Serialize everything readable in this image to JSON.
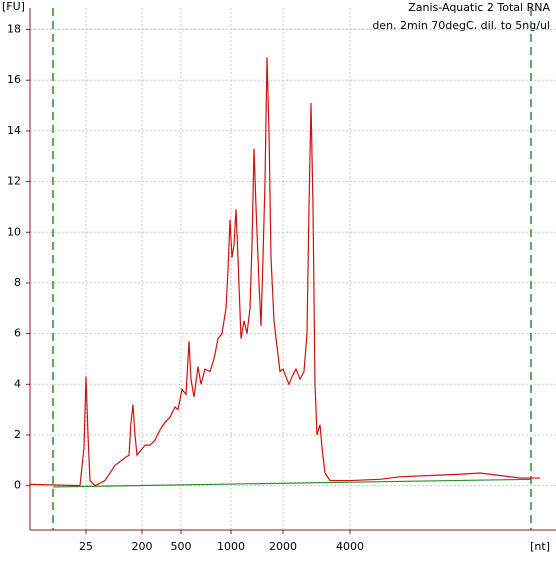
{
  "chart_data": {
    "type": "line",
    "title": "Zanis-Aquatic 2 Total RNA",
    "subtitle": "den. 2min 70degC, dil. to 5ng/ul",
    "y_label": "[FU]",
    "x_label": "[nt]",
    "xlim": [
      19,
      71.6
    ],
    "ylim": [
      -1.75,
      18.85
    ],
    "xticks": [
      {
        "value": 24.6,
        "label": "25"
      },
      {
        "value": 30.2,
        "label": "200"
      },
      {
        "value": 34.1,
        "label": "500"
      },
      {
        "value": 39.1,
        "label": "1000"
      },
      {
        "value": 44.3,
        "label": "2000"
      },
      {
        "value": 51.0,
        "label": "4000"
      }
    ],
    "yticks": [
      0,
      2,
      4,
      6,
      8,
      10,
      12,
      14,
      16,
      18
    ],
    "grid": true,
    "markers": [
      21.3,
      69.1
    ],
    "marker_color": "#2e8b2e",
    "series": [
      {
        "color": "#d01010",
        "x": [
          19.0,
          24.0,
          24.4,
          24.6,
          24.8,
          25.0,
          25.5,
          26.5,
          27.5,
          28.5,
          28.9,
          29.1,
          29.3,
          29.5,
          29.7,
          30.1,
          30.5,
          31.0,
          31.5,
          32.0,
          32.5,
          33.0,
          33.5,
          33.8,
          34.2,
          34.6,
          34.9,
          35.1,
          35.4,
          35.8,
          36.1,
          36.5,
          37.0,
          37.4,
          37.8,
          38.2,
          38.6,
          38.8,
          39.0,
          39.2,
          39.4,
          39.6,
          39.8,
          40.1,
          40.4,
          40.7,
          41.0,
          41.2,
          41.4,
          41.6,
          41.9,
          42.1,
          42.3,
          42.5,
          42.7,
          42.9,
          43.1,
          43.4,
          43.7,
          44.0,
          44.3,
          44.6,
          44.9,
          45.2,
          45.6,
          46.0,
          46.4,
          46.7,
          46.9,
          47.1,
          47.3,
          47.5,
          47.7,
          48.0,
          48.2,
          48.5,
          49.0,
          51.0,
          54.0,
          56.0,
          59.0,
          62.0,
          64.0,
          66.0,
          68.0,
          70.0
        ],
        "values": [
          0.05,
          0,
          1.5,
          4.3,
          2,
          0.2,
          0,
          0.2,
          0.8,
          1.1,
          1.2,
          2.5,
          3.2,
          2,
          1.2,
          1.4,
          1.6,
          1.6,
          1.8,
          2.2,
          2.5,
          2.7,
          3.1,
          3.0,
          3.8,
          3.6,
          5.7,
          4.2,
          3.5,
          4.7,
          4.0,
          4.6,
          4.5,
          5.0,
          5.8,
          6.0,
          7.0,
          8.5,
          10.5,
          9.0,
          9.5,
          10.9,
          9.0,
          5.8,
          6.5,
          6.0,
          7.0,
          9.5,
          13.3,
          11.0,
          8.0,
          6.3,
          9.0,
          12.0,
          16.9,
          14.0,
          9.0,
          6.5,
          5.5,
          4.5,
          4.6,
          4.3,
          4.0,
          4.3,
          4.6,
          4.2,
          4.5,
          6.0,
          11.0,
          15.1,
          11.0,
          4.0,
          2.0,
          2.4,
          1.5,
          0.5,
          0.2,
          0.2,
          0.25,
          0.35,
          0.4,
          0.45,
          0.5,
          0.4,
          0.3,
          0.3
        ]
      },
      {
        "color": "#2e8b2e",
        "x": [
          21.3,
          69.1
        ],
        "values": [
          -0.05,
          0.25
        ]
      }
    ]
  }
}
